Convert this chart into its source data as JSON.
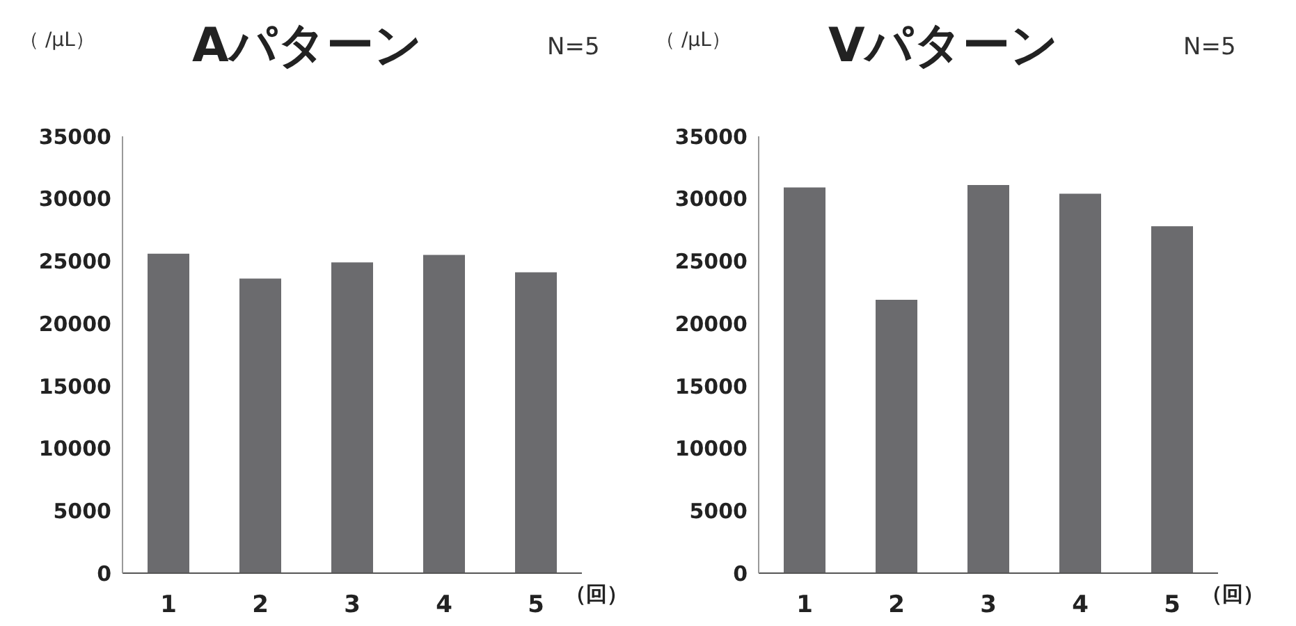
{
  "chart_data": [
    {
      "type": "bar",
      "title": "Aパターン",
      "ylabel": "（ /μL）",
      "xlabel": "（回）",
      "annotations": [
        "N=5"
      ],
      "categories": [
        "1",
        "2",
        "3",
        "4",
        "5"
      ],
      "values": [
        25600,
        23600,
        24900,
        25500,
        24100
      ],
      "color": "#6b6b6e",
      "ylim": [
        0,
        35000
      ],
      "yticks": [
        0,
        5000,
        10000,
        15000,
        20000,
        25000,
        30000,
        35000
      ],
      "grid": false
    },
    {
      "type": "bar",
      "title": "Vパターン",
      "ylabel": "（ /μL）",
      "xlabel": "（回）",
      "annotations": [
        "N=5"
      ],
      "categories": [
        "1",
        "2",
        "3",
        "4",
        "5"
      ],
      "values": [
        30900,
        21900,
        31100,
        30400,
        27800
      ],
      "color": "#6b6b6e",
      "ylim": [
        0,
        35000
      ],
      "yticks": [
        0,
        5000,
        10000,
        15000,
        20000,
        25000,
        30000,
        35000
      ],
      "grid": false
    }
  ]
}
